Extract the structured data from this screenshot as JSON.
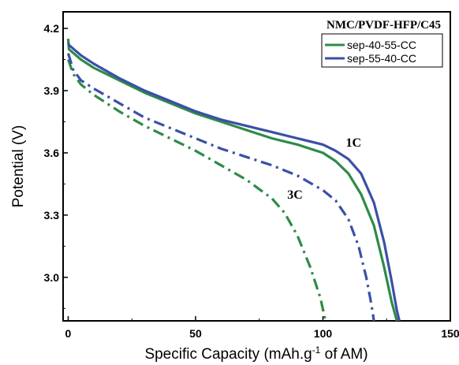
{
  "chart_data": {
    "type": "line",
    "title": "",
    "xlabel": "Specific Capacity (mAh.g",
    "xlabel_sup": "-1",
    "xlabel_tail": " of AM)",
    "ylabel": "Potential (V)",
    "xlim": [
      -2,
      150
    ],
    "ylim": [
      2.79,
      4.28
    ],
    "xticks": [
      0,
      50,
      100,
      150
    ],
    "yticks": [
      3.0,
      3.3,
      3.6,
      3.9,
      4.2
    ],
    "xtick_labels": [
      "0",
      "50",
      "100",
      "150"
    ],
    "ytick_labels": [
      "3.0",
      "3.3",
      "3.6",
      "3.9",
      "4.2"
    ],
    "legend": {
      "title": "NMC/PVDF-HFP/C45",
      "position": "top-right",
      "entries": [
        "sep-40-55-CC",
        "sep-55-40-CC"
      ]
    },
    "annotations": [
      {
        "text": "1C",
        "x": 109,
        "y": 3.63
      },
      {
        "text": "3C",
        "x": 86,
        "y": 3.38
      }
    ],
    "colors": {
      "green": "#2e8b46",
      "blue": "#3b4fa8"
    },
    "series": [
      {
        "name": "sep-40-55-CC",
        "rate": "1C",
        "color": "#2e8b46",
        "dash": "solid",
        "points": [
          [
            0,
            4.15
          ],
          [
            0.3,
            4.1
          ],
          [
            5,
            4.05
          ],
          [
            10,
            4.01
          ],
          [
            20,
            3.95
          ],
          [
            30,
            3.89
          ],
          [
            40,
            3.84
          ],
          [
            50,
            3.79
          ],
          [
            60,
            3.75
          ],
          [
            70,
            3.71
          ],
          [
            80,
            3.67
          ],
          [
            90,
            3.64
          ],
          [
            100,
            3.6
          ],
          [
            105,
            3.56
          ],
          [
            110,
            3.5
          ],
          [
            115,
            3.4
          ],
          [
            120,
            3.25
          ],
          [
            124,
            3.05
          ],
          [
            127,
            2.88
          ],
          [
            129,
            2.79
          ]
        ]
      },
      {
        "name": "sep-55-40-CC",
        "rate": "1C",
        "color": "#3b4fa8",
        "dash": "solid",
        "points": [
          [
            0,
            4.13
          ],
          [
            0.3,
            4.12
          ],
          [
            5,
            4.07
          ],
          [
            10,
            4.03
          ],
          [
            20,
            3.96
          ],
          [
            30,
            3.9
          ],
          [
            40,
            3.85
          ],
          [
            50,
            3.8
          ],
          [
            60,
            3.76
          ],
          [
            70,
            3.73
          ],
          [
            80,
            3.7
          ],
          [
            90,
            3.67
          ],
          [
            100,
            3.64
          ],
          [
            105,
            3.61
          ],
          [
            110,
            3.57
          ],
          [
            115,
            3.5
          ],
          [
            120,
            3.36
          ],
          [
            124,
            3.17
          ],
          [
            127,
            2.98
          ],
          [
            129,
            2.84
          ],
          [
            130,
            2.79
          ]
        ]
      },
      {
        "name": "sep-40-55-CC",
        "rate": "3C",
        "color": "#2e8b46",
        "dash": "dashdot",
        "points": [
          [
            0,
            4.05
          ],
          [
            2,
            3.98
          ],
          [
            5,
            3.93
          ],
          [
            10,
            3.88
          ],
          [
            20,
            3.8
          ],
          [
            30,
            3.73
          ],
          [
            40,
            3.67
          ],
          [
            50,
            3.61
          ],
          [
            60,
            3.54
          ],
          [
            70,
            3.47
          ],
          [
            80,
            3.38
          ],
          [
            85,
            3.31
          ],
          [
            90,
            3.2
          ],
          [
            95,
            3.05
          ],
          [
            99,
            2.9
          ],
          [
            101,
            2.79
          ]
        ]
      },
      {
        "name": "sep-55-40-CC",
        "rate": "3C",
        "color": "#3b4fa8",
        "dash": "dashdot",
        "points": [
          [
            0,
            4.08
          ],
          [
            2,
            4.0
          ],
          [
            5,
            3.95
          ],
          [
            10,
            3.91
          ],
          [
            20,
            3.84
          ],
          [
            30,
            3.77
          ],
          [
            40,
            3.72
          ],
          [
            50,
            3.67
          ],
          [
            60,
            3.62
          ],
          [
            70,
            3.58
          ],
          [
            80,
            3.54
          ],
          [
            90,
            3.49
          ],
          [
            100,
            3.42
          ],
          [
            105,
            3.37
          ],
          [
            110,
            3.28
          ],
          [
            114,
            3.15
          ],
          [
            117,
            3.0
          ],
          [
            119,
            2.87
          ],
          [
            120,
            2.79
          ]
        ]
      }
    ]
  }
}
